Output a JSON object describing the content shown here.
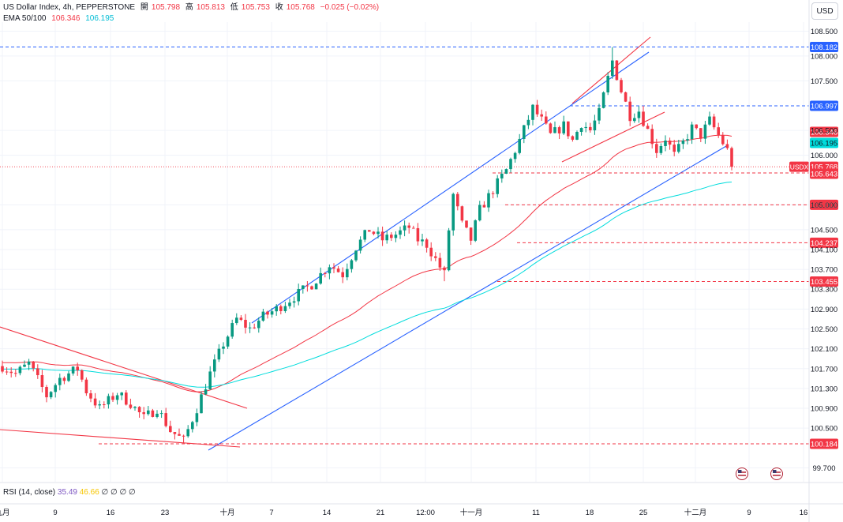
{
  "header": {
    "symbol": "US Dollar Index, 4h, PEPPERSTONE",
    "open_label": "開",
    "open": "105.798",
    "high_label": "高",
    "high": "105.813",
    "low_label": "低",
    "low": "105.753",
    "close_label": "收",
    "close": "105.768",
    "change": "−0.025 (−0.02%)",
    "ema_label": "EMA 50/100",
    "ema50": "106.346",
    "ema100": "106.195"
  },
  "currency_button": "USD",
  "rsi": {
    "label": "RSI (14, close)",
    "v1": "35.49",
    "v2": "46.66",
    "zeros": "∅ ∅ ∅ ∅"
  },
  "colors": {
    "up": "#089981",
    "down": "#f23645",
    "ema50": "#f23645",
    "ema100": "#00dcdc",
    "channel": "#2962ff",
    "support": "#f23645",
    "resistance": "#2962ff"
  },
  "chart_data": {
    "type": "candlestick",
    "y_axis_ticks": [
      "108.500",
      "108.000",
      "107.500",
      "106.500",
      "106.000",
      "105.000",
      "104.500",
      "104.100",
      "103.700",
      "103.300",
      "102.900",
      "102.500",
      "102.100",
      "101.700",
      "101.300",
      "100.900",
      "100.500",
      "99.700"
    ],
    "x_axis_ticks": [
      "九月",
      "9",
      "16",
      "23",
      "十月",
      "7",
      "14",
      "21",
      "12:00",
      "十一月",
      "11",
      "18",
      "25",
      "十二月",
      "9",
      "16"
    ],
    "levels": [
      {
        "label": "108.182",
        "value": 108.182,
        "color": "blue",
        "style": "dashed"
      },
      {
        "label": "106.997",
        "value": 106.997,
        "color": "blue",
        "style": "dashed"
      },
      {
        "label": "106.346",
        "value": 106.346,
        "color": "red",
        "style": "ema50"
      },
      {
        "label": "106.195",
        "value": 106.195,
        "color": "cyan",
        "style": "ema100"
      },
      {
        "label": "105.768",
        "value": 105.768,
        "color": "red",
        "style": "last",
        "tag": "USDX"
      },
      {
        "label": "105.643",
        "value": 105.643,
        "color": "red",
        "style": "dashed"
      },
      {
        "label": "105.000",
        "value": 105.0,
        "color": "red",
        "style": "dashed"
      },
      {
        "label": "104.237",
        "value": 104.237,
        "color": "red",
        "style": "dashed"
      },
      {
        "label": "103.455",
        "value": 103.455,
        "color": "red",
        "style": "dashed"
      },
      {
        "label": "100.184",
        "value": 100.184,
        "color": "red",
        "style": "dashed"
      }
    ],
    "anchors": [
      [
        0,
        101.75
      ],
      [
        3,
        101.6
      ],
      [
        6,
        101.8
      ],
      [
        10,
        101.15
      ],
      [
        13,
        101.5
      ],
      [
        17,
        101.7
      ],
      [
        19,
        101.25
      ],
      [
        22,
        100.9
      ],
      [
        26,
        101.2
      ],
      [
        29,
        101.0
      ],
      [
        32,
        100.7
      ],
      [
        35,
        100.9
      ],
      [
        38,
        100.45
      ],
      [
        41,
        100.25
      ],
      [
        44,
        100.9
      ],
      [
        47,
        101.6
      ],
      [
        50,
        102.2
      ],
      [
        53,
        102.7
      ],
      [
        56,
        102.5
      ],
      [
        59,
        102.75
      ],
      [
        62,
        102.9
      ],
      [
        66,
        103.15
      ],
      [
        70,
        103.4
      ],
      [
        74,
        103.8
      ],
      [
        77,
        103.6
      ],
      [
        80,
        104.15
      ],
      [
        83,
        104.5
      ],
      [
        86,
        104.3
      ],
      [
        89,
        104.4
      ],
      [
        92,
        104.55
      ],
      [
        94,
        104.3
      ],
      [
        96,
        104.2
      ],
      [
        98,
        103.9
      ],
      [
        100,
        103.6
      ],
      [
        101,
        104.5
      ],
      [
        102,
        105.2
      ],
      [
        104,
        104.6
      ],
      [
        106,
        104.3
      ],
      [
        108,
        104.9
      ],
      [
        111,
        105.3
      ],
      [
        114,
        105.7
      ],
      [
        117,
        106.3
      ],
      [
        120,
        106.95
      ],
      [
        122,
        106.7
      ],
      [
        124,
        106.4
      ],
      [
        127,
        106.6
      ],
      [
        129,
        106.3
      ],
      [
        131,
        106.65
      ],
      [
        133,
        106.5
      ],
      [
        135,
        106.85
      ],
      [
        137,
        107.55
      ],
      [
        138,
        107.9
      ],
      [
        140,
        107.3
      ],
      [
        142,
        106.8
      ],
      [
        144,
        106.9
      ],
      [
        146,
        106.5
      ],
      [
        148,
        106.1
      ],
      [
        150,
        106.35
      ],
      [
        152,
        106.0
      ],
      [
        154,
        106.25
      ],
      [
        156,
        106.55
      ],
      [
        158,
        106.4
      ],
      [
        160,
        106.7
      ],
      [
        162,
        106.4
      ],
      [
        164,
        106.1
      ],
      [
        165,
        105.77
      ]
    ]
  }
}
